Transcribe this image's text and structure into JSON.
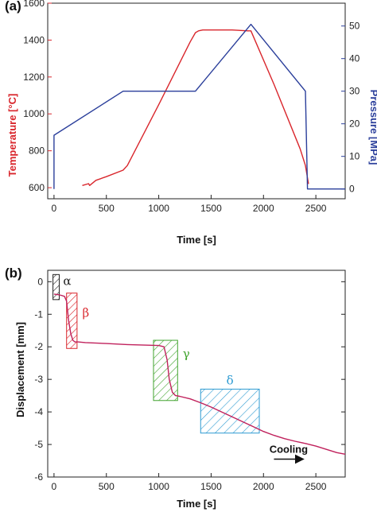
{
  "chart_data": [
    {
      "panel": "(a)",
      "type": "line",
      "xlabel": "Time [s]",
      "ylabel_left": "Temperature [°C]",
      "ylabel_right": "Pressure [MPa]",
      "xlim": [
        -60,
        2780
      ],
      "ylim_left": [
        540,
        1600
      ],
      "ylim_right": [
        -3,
        57
      ],
      "xticks": [
        0,
        500,
        1000,
        1500,
        2000,
        2500
      ],
      "yticks_left": [
        600,
        800,
        1000,
        1200,
        1400,
        1600
      ],
      "yticks_right": [
        0,
        10,
        20,
        30,
        40,
        50
      ],
      "colors": {
        "temperature": "#d9262c",
        "pressure": "#2b3f9b"
      },
      "series": [
        {
          "key": "temperature",
          "axis": "left",
          "x": [
            270,
            330,
            340,
            400,
            500,
            660,
            700,
            1000,
            1300,
            1350,
            1380,
            1420,
            1500,
            1700,
            1850,
            1880,
            2100,
            2350,
            2400,
            2430
          ],
          "y": [
            612,
            622,
            612,
            640,
            660,
            695,
            720,
            1050,
            1390,
            1440,
            1450,
            1455,
            1455,
            1455,
            1450,
            1450,
            1160,
            810,
            720,
            620
          ]
        },
        {
          "key": "pressure",
          "axis": "right",
          "x": [
            0,
            0,
            660,
            1350,
            1880,
            2400,
            2420,
            2780
          ],
          "y": [
            0,
            16.5,
            30,
            30,
            50.5,
            30,
            0,
            0
          ]
        }
      ]
    },
    {
      "panel": "(b)",
      "type": "line",
      "xlabel": "Time [s]",
      "ylabel": "Displacement [mm]",
      "xlim": [
        -60,
        2780
      ],
      "ylim": [
        -6,
        0.35
      ],
      "xticks": [
        0,
        500,
        1000,
        1500,
        2000,
        2500
      ],
      "yticks": [
        0,
        -1,
        -2,
        -3,
        -4,
        -5,
        -6
      ],
      "colors": {
        "line": "#c0215c",
        "alpha": "#222222",
        "beta": "#d9262c",
        "gamma": "#3fa32c",
        "delta": "#2e9bd2"
      },
      "series": [
        {
          "x": [
            0,
            40,
            70,
            100,
            120,
            140,
            160,
            180,
            200,
            230,
            300,
            500,
            700,
            900,
            1000,
            1050,
            1080,
            1100,
            1130,
            1160,
            1200,
            1300,
            1400,
            1500,
            1600,
            1700,
            1800,
            1900,
            2000,
            2100,
            2200,
            2300,
            2400,
            2500,
            2600,
            2700,
            2780
          ],
          "y": [
            -0.38,
            -0.4,
            -0.42,
            -0.45,
            -0.6,
            -1.2,
            -1.6,
            -1.8,
            -1.85,
            -1.85,
            -1.87,
            -1.9,
            -1.93,
            -1.95,
            -1.96,
            -2.0,
            -2.4,
            -3.0,
            -3.4,
            -3.5,
            -3.52,
            -3.6,
            -3.72,
            -3.85,
            -4.0,
            -4.15,
            -4.3,
            -4.45,
            -4.6,
            -4.72,
            -4.82,
            -4.9,
            -4.97,
            -5.05,
            -5.15,
            -5.25,
            -5.3
          ]
        }
      ],
      "regions": [
        {
          "label": "α",
          "key": "alpha",
          "x": [
            -10,
            50
          ],
          "y": [
            -0.55,
            0.22
          ]
        },
        {
          "label": "β",
          "key": "beta",
          "x": [
            120,
            220
          ],
          "y": [
            -2.05,
            -0.35
          ]
        },
        {
          "label": "γ",
          "key": "gamma",
          "x": [
            950,
            1180
          ],
          "y": [
            -3.65,
            -1.8
          ]
        },
        {
          "label": "δ",
          "key": "delta",
          "x": [
            1400,
            1960
          ],
          "y": [
            -4.65,
            -3.3
          ]
        }
      ],
      "annotation": {
        "text": "Cooling",
        "arrow_from": 2100,
        "arrow_to": 2380,
        "y": -5.45
      }
    }
  ]
}
